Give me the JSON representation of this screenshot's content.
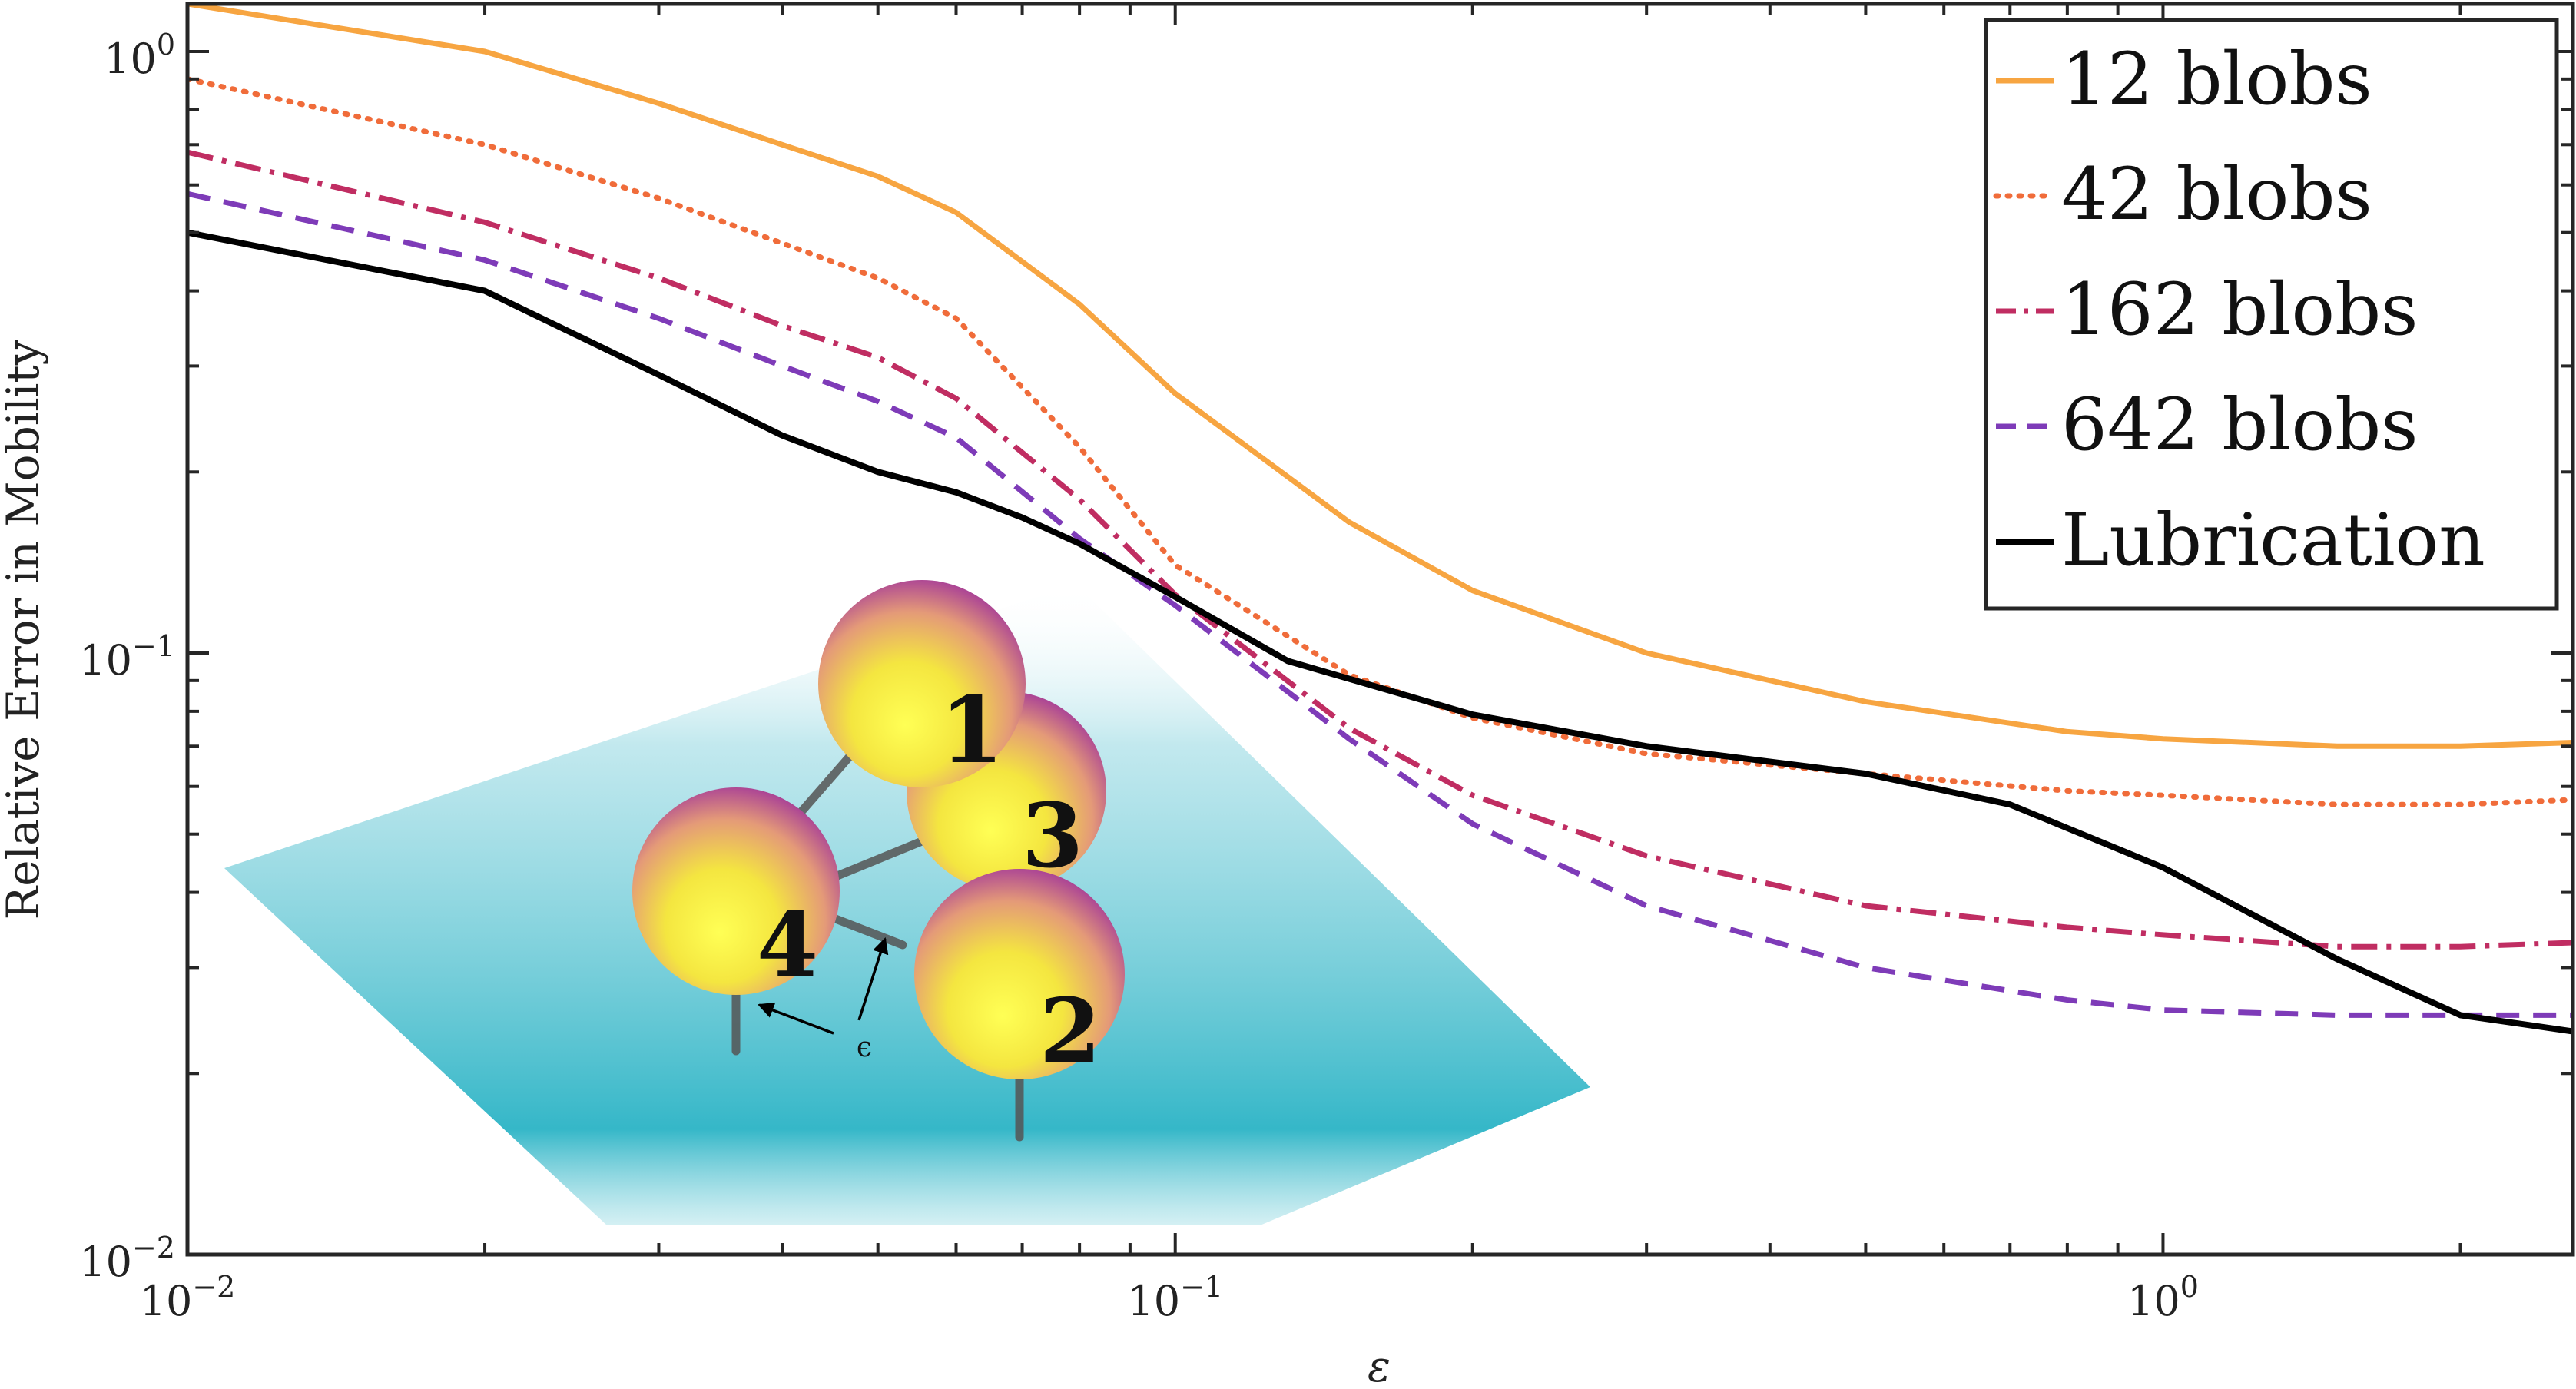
{
  "chart_data": {
    "type": "line",
    "title": "",
    "xlabel": "ε",
    "ylabel": "Relative Error in Mobility",
    "xscale": "log",
    "yscale": "log",
    "xlim": [
      0.01,
      2.6
    ],
    "ylim": [
      0.01,
      1.2
    ],
    "grid": false,
    "legend_position": "top-right",
    "x_ticks": [
      {
        "value": 0.01,
        "base": "10",
        "exp": "−2"
      },
      {
        "value": 0.1,
        "base": "10",
        "exp": "−1"
      },
      {
        "value": 1,
        "base": "10",
        "exp": "0"
      }
    ],
    "y_ticks": [
      {
        "value": 0.01,
        "base": "10",
        "exp": "−2"
      },
      {
        "value": 0.1,
        "base": "10",
        "exp": "−1"
      },
      {
        "value": 1,
        "base": "10",
        "exp": "0"
      }
    ],
    "series": [
      {
        "name": "12 blobs",
        "color": "#f7a541",
        "dash": "solid",
        "width": 7,
        "x": [
          0.01,
          0.02,
          0.03,
          0.04,
          0.05,
          0.06,
          0.08,
          0.1,
          0.15,
          0.2,
          0.3,
          0.5,
          0.8,
          1.0,
          1.5,
          2.0,
          2.6
        ],
        "y": [
          1.2,
          1.0,
          0.82,
          0.7,
          0.62,
          0.54,
          0.38,
          0.27,
          0.165,
          0.127,
          0.1,
          0.083,
          0.074,
          0.072,
          0.07,
          0.07,
          0.071
        ]
      },
      {
        "name": "42 blobs",
        "color": "#f06c3a",
        "dash": "dotted",
        "width": 7,
        "x": [
          0.01,
          0.02,
          0.03,
          0.04,
          0.05,
          0.06,
          0.08,
          0.1,
          0.15,
          0.2,
          0.3,
          0.5,
          0.8,
          1.0,
          1.5,
          2.0,
          2.6
        ],
        "y": [
          0.9,
          0.7,
          0.57,
          0.48,
          0.42,
          0.36,
          0.22,
          0.14,
          0.092,
          0.078,
          0.068,
          0.063,
          0.059,
          0.058,
          0.056,
          0.056,
          0.057
        ]
      },
      {
        "name": "162 blobs",
        "color": "#c02d62",
        "dash": "dashdot",
        "width": 7,
        "x": [
          0.01,
          0.02,
          0.03,
          0.04,
          0.05,
          0.06,
          0.08,
          0.1,
          0.15,
          0.2,
          0.3,
          0.5,
          0.8,
          1.0,
          1.5,
          2.0,
          2.6
        ],
        "y": [
          0.68,
          0.52,
          0.42,
          0.35,
          0.31,
          0.265,
          0.18,
          0.125,
          0.075,
          0.058,
          0.046,
          0.038,
          0.035,
          0.034,
          0.0325,
          0.0325,
          0.033
        ]
      },
      {
        "name": "642 blobs",
        "color": "#7e3bb8",
        "dash": "dashed",
        "width": 7,
        "x": [
          0.01,
          0.02,
          0.03,
          0.04,
          0.05,
          0.06,
          0.08,
          0.1,
          0.15,
          0.2,
          0.3,
          0.5,
          0.8,
          1.0,
          1.5,
          2.0,
          2.6
        ],
        "y": [
          0.58,
          0.45,
          0.36,
          0.3,
          0.262,
          0.228,
          0.155,
          0.12,
          0.072,
          0.052,
          0.038,
          0.03,
          0.0265,
          0.0255,
          0.025,
          0.025,
          0.025
        ]
      },
      {
        "name": "Lubrication",
        "color": "#000000",
        "dash": "solid",
        "width": 8,
        "x": [
          0.01,
          0.02,
          0.03,
          0.04,
          0.05,
          0.06,
          0.07,
          0.08,
          0.1,
          0.13,
          0.2,
          0.3,
          0.5,
          0.7,
          1.0,
          1.5,
          2.0,
          2.6
        ],
        "y": [
          0.5,
          0.4,
          0.29,
          0.23,
          0.2,
          0.185,
          0.168,
          0.152,
          0.124,
          0.097,
          0.079,
          0.07,
          0.063,
          0.056,
          0.044,
          0.031,
          0.025,
          0.0235
        ]
      }
    ]
  },
  "inset": {
    "sphere_labels": [
      "1",
      "3",
      "4",
      "2"
    ],
    "gap_label": "ϵ",
    "sphere_color_top": "#b030b8",
    "sphere_color_bottom": "#ffff44",
    "plane_color": "#3bb8c9"
  }
}
